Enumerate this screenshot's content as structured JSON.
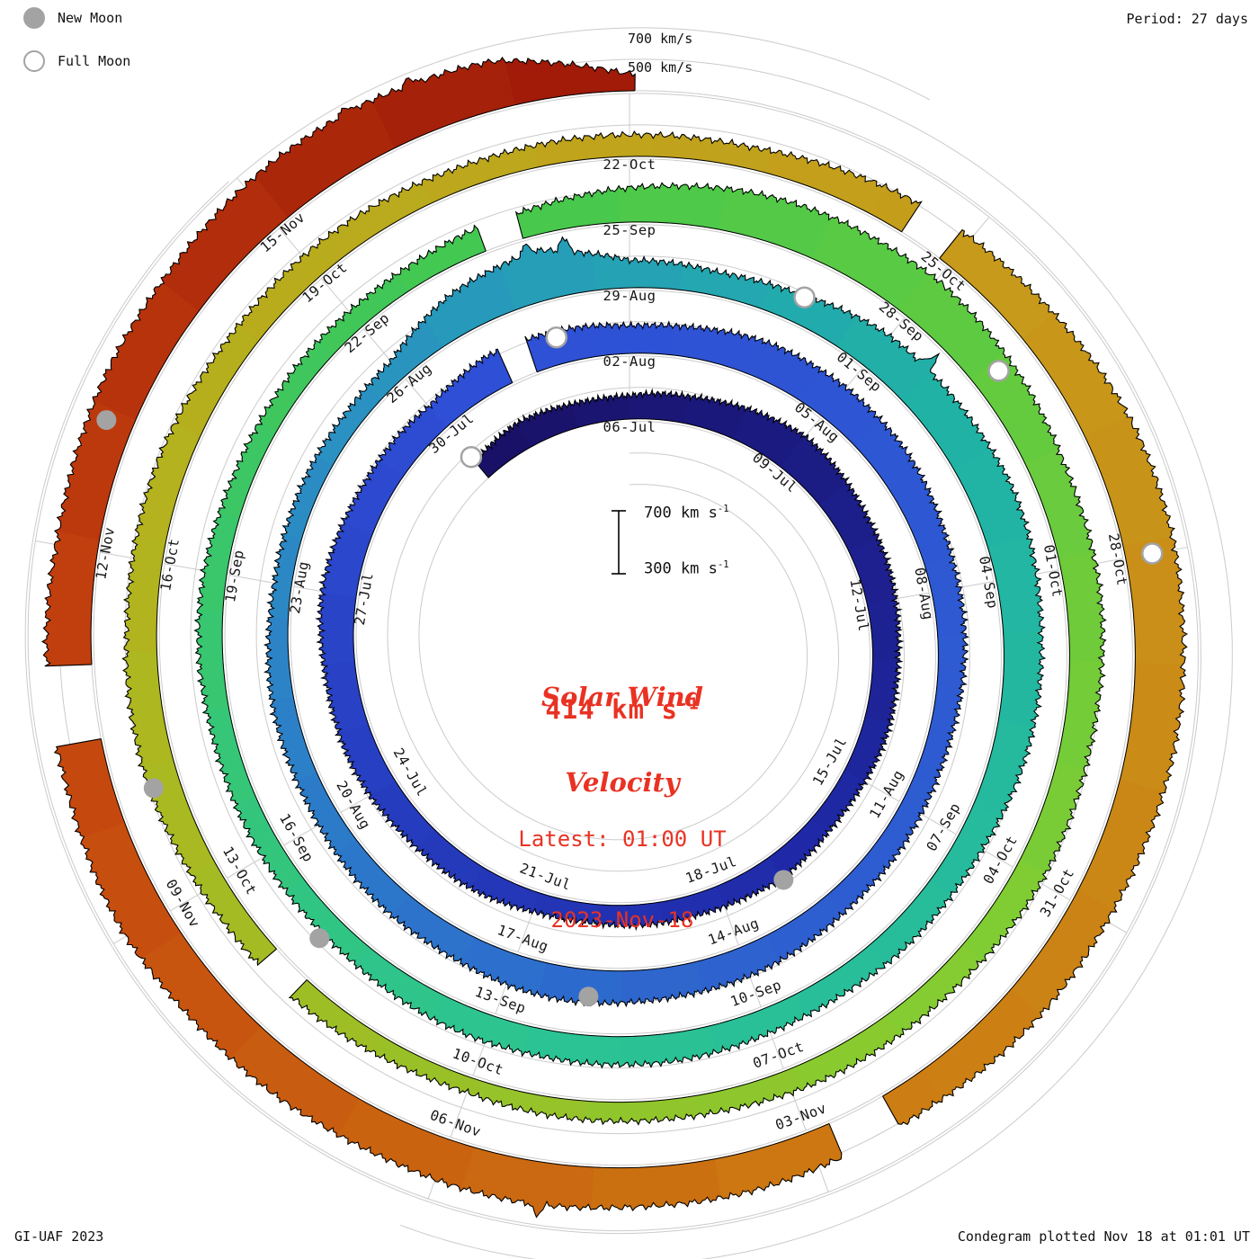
{
  "header": {
    "period_label": "Period: 27 days",
    "top_scale_labels": [
      "700 km/s",
      "500 km/s"
    ]
  },
  "legend": {
    "items": [
      {
        "label": "New Moon",
        "type": "new"
      },
      {
        "label": "Full Moon",
        "type": "full"
      }
    ]
  },
  "center": {
    "title": [
      "Solar Wind",
      "Velocity"
    ],
    "value": "414 km s",
    "value_sup": "-1",
    "latest": [
      "Latest: 01:00 UT",
      "2023-Nov-18"
    ],
    "scale_top": "700 km s",
    "scale_bottom": "300 km s",
    "scale_sup": "-1"
  },
  "footer": {
    "left": "GI-UAF 2023",
    "right": "Condegram plotted Nov 18 at 01:01 UT"
  },
  "colors": {
    "text_red": "#e93223",
    "grid_gray": "#cbcbcb",
    "moon_gray": "#a3a3a3",
    "label_ink": "#161616",
    "outline_ink": "#000000"
  },
  "chart_data": {
    "type": "area",
    "subtype": "condegram-spiral",
    "title": "Solar Wind Velocity",
    "latest": {
      "value_km_s": 414,
      "time": "01:00 UT",
      "date": "2023-Nov-18"
    },
    "period_days": 27,
    "start_date": "2023-07-03",
    "end_date": "2023-11-18T01:00",
    "angle_zero_day": 3,
    "total_days": 138.042,
    "radial_axis": {
      "min": 300,
      "max": 700,
      "unit": "km/s",
      "gridlines": [
        300,
        500,
        700
      ]
    },
    "tick_interval_days": 3,
    "tick_labels": [
      {
        "label": "06-Jul",
        "day": 3
      },
      {
        "label": "09-Jul",
        "day": 6
      },
      {
        "label": "12-Jul",
        "day": 9
      },
      {
        "label": "15-Jul",
        "day": 12
      },
      {
        "label": "18-Jul",
        "day": 15
      },
      {
        "label": "21-Jul",
        "day": 18
      },
      {
        "label": "24-Jul",
        "day": 21
      },
      {
        "label": "27-Jul",
        "day": 24
      },
      {
        "label": "30-Jul",
        "day": 27
      },
      {
        "label": "02-Aug",
        "day": 30
      },
      {
        "label": "05-Aug",
        "day": 33
      },
      {
        "label": "08-Aug",
        "day": 36
      },
      {
        "label": "11-Aug",
        "day": 39
      },
      {
        "label": "14-Aug",
        "day": 42
      },
      {
        "label": "17-Aug",
        "day": 45
      },
      {
        "label": "20-Aug",
        "day": 48
      },
      {
        "label": "23-Aug",
        "day": 51
      },
      {
        "label": "26-Aug",
        "day": 54
      },
      {
        "label": "29-Aug",
        "day": 57
      },
      {
        "label": "01-Sep",
        "day": 60
      },
      {
        "label": "04-Sep",
        "day": 63
      },
      {
        "label": "07-Sep",
        "day": 66
      },
      {
        "label": "10-Sep",
        "day": 69
      },
      {
        "label": "13-Sep",
        "day": 72
      },
      {
        "label": "16-Sep",
        "day": 75
      },
      {
        "label": "19-Sep",
        "day": 78
      },
      {
        "label": "22-Sep",
        "day": 81
      },
      {
        "label": "25-Sep",
        "day": 84
      },
      {
        "label": "28-Sep",
        "day": 87
      },
      {
        "label": "01-Oct",
        "day": 90
      },
      {
        "label": "04-Oct",
        "day": 93
      },
      {
        "label": "07-Oct",
        "day": 96
      },
      {
        "label": "10-Oct",
        "day": 99
      },
      {
        "label": "13-Oct",
        "day": 102
      },
      {
        "label": "16-Oct",
        "day": 105
      },
      {
        "label": "19-Oct",
        "day": 108
      },
      {
        "label": "22-Oct",
        "day": 111
      },
      {
        "label": "25-Oct",
        "day": 114
      },
      {
        "label": "28-Oct",
        "day": 117
      },
      {
        "label": "31-Oct",
        "day": 120
      },
      {
        "label": "03-Nov",
        "day": 123
      },
      {
        "label": "06-Nov",
        "day": 126
      },
      {
        "label": "09-Nov",
        "day": 129
      },
      {
        "label": "12-Nov",
        "day": 132
      },
      {
        "label": "15-Nov",
        "day": 135
      }
    ],
    "daily_velocity": [
      440,
      470,
      460,
      450,
      470,
      520,
      545,
      530,
      505,
      480,
      470,
      460,
      450,
      440,
      450,
      445,
      430,
      420,
      430,
      450,
      470,
      485,
      495,
      505,
      515,
      505,
      485,
      470,
      530,
      505,
      480,
      500,
      530,
      545,
      525,
      500,
      480,
      460,
      450,
      440,
      450,
      470,
      485,
      500,
      510,
      500,
      480,
      460,
      450,
      440,
      430,
      418,
      410,
      420,
      432,
      560,
      630,
      470,
      452,
      485,
      545,
      565,
      575,
      560,
      540,
      510,
      482,
      462,
      450,
      462,
      472,
      482,
      470,
      452,
      440,
      432,
      440,
      452,
      442,
      430,
      420,
      430,
      442,
      462,
      525,
      565,
      592,
      605,
      560,
      532,
      520,
      502,
      492,
      480,
      462,
      450,
      440,
      430,
      412,
      400,
      422,
      442,
      470,
      492,
      502,
      492,
      482,
      470,
      462,
      452,
      442,
      432,
      442,
      482,
      525,
      565,
      605,
      625,
      605,
      582,
      562,
      542,
      522,
      532,
      552,
      562,
      572,
      562,
      582,
      605,
      592,
      582,
      572,
      582,
      605,
      625,
      648,
      600,
      414
    ],
    "spikes": [
      {
        "day": 28.3,
        "v": 690
      },
      {
        "day": 55.9,
        "v": 700
      },
      {
        "day": 56.3,
        "v": 680
      },
      {
        "day": 60.5,
        "v": 660
      },
      {
        "day": 125.2,
        "v": 640
      },
      {
        "day": 135.9,
        "v": 700
      },
      {
        "day": 136.4,
        "v": 688
      }
    ],
    "gaps": [
      {
        "start_day": 28.2,
        "end_day": 28.6
      },
      {
        "start_day": 82.5,
        "end_day": 82.9
      },
      {
        "start_day": 100.8,
        "end_day": 101.2
      },
      {
        "start_day": 113.5,
        "end_day": 113.9
      },
      {
        "start_day": 122.3,
        "end_day": 122.8
      },
      {
        "start_day": 130.5,
        "end_day": 131.1
      }
    ],
    "moons": [
      {
        "date": "03-Jul",
        "type": "full",
        "day": 0
      },
      {
        "date": "17-Jul",
        "type": "new",
        "day": 14
      },
      {
        "date": "01-Aug",
        "type": "full",
        "day": 29
      },
      {
        "date": "16-Aug",
        "type": "new",
        "day": 44
      },
      {
        "date": "31-Aug",
        "type": "full",
        "day": 59
      },
      {
        "date": "15-Sep",
        "type": "new",
        "day": 74
      },
      {
        "date": "29-Sep",
        "type": "full",
        "day": 88
      },
      {
        "date": "14-Oct",
        "type": "new",
        "day": 103
      },
      {
        "date": "28-Oct",
        "type": "full",
        "day": 117
      },
      {
        "date": "13-Nov",
        "type": "new",
        "day": 133
      }
    ],
    "colormap": [
      [
        0.0,
        "#191065"
      ],
      [
        0.1,
        "#1f2aa8"
      ],
      [
        0.2,
        "#2e4fd6"
      ],
      [
        0.3,
        "#2e5fd0"
      ],
      [
        0.38,
        "#2b8ec4"
      ],
      [
        0.44,
        "#20b2a6"
      ],
      [
        0.52,
        "#2cc492"
      ],
      [
        0.6,
        "#45c84d"
      ],
      [
        0.68,
        "#82cd32"
      ],
      [
        0.76,
        "#b2b41e"
      ],
      [
        0.83,
        "#c79a1b"
      ],
      [
        0.89,
        "#cd7a12"
      ],
      [
        0.95,
        "#c4420e"
      ],
      [
        1.0,
        "#9e1808"
      ]
    ],
    "legend_position": "top-left",
    "grid": true
  }
}
